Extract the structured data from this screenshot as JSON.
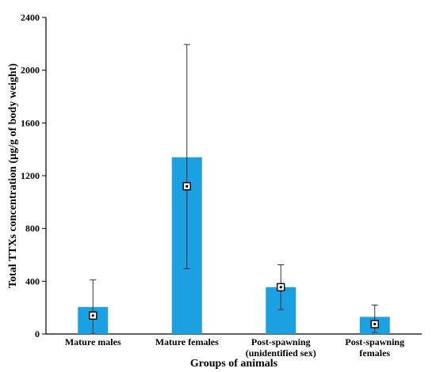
{
  "chart_data": {
    "type": "bar",
    "title": "",
    "xlabel": "Groups of animals",
    "ylabel": "Total TTXs concentration (μg/g of body weight)",
    "ylim": [
      0,
      2400
    ],
    "yticks": [
      "0",
      "400",
      "800",
      "1200",
      "1600",
      "2000",
      "2400"
    ],
    "grid": false,
    "categories": [
      [
        "Mature males"
      ],
      [
        "Mature females"
      ],
      [
        "Post-spawning",
        "(unidentified sex)"
      ],
      [
        "Post-spawning",
        "females"
      ]
    ],
    "series": [
      {
        "values": [
          205,
          1340,
          355,
          130
        ],
        "markers": [
          140,
          1120,
          355,
          75
        ],
        "error_low": [
          0,
          495,
          185,
          10
        ],
        "error_high": [
          410,
          2195,
          525,
          220
        ]
      }
    ],
    "colors": {
      "bar": "#1ba1e2",
      "axis": "#000000",
      "marker_fill": "#ffffff"
    }
  }
}
